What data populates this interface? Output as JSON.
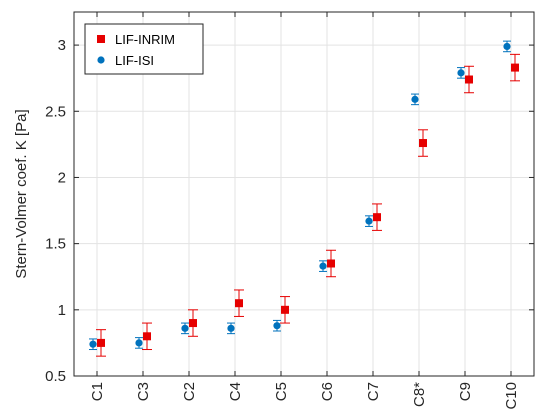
{
  "chart_data": {
    "type": "scatter",
    "title": "",
    "xlabel": "",
    "ylabel": "Stern-Volmer coef. K [Pa]",
    "categories": [
      "C1",
      "C3",
      "C2",
      "C4",
      "C5",
      "C6",
      "C7",
      "C8*",
      "C9",
      "C10"
    ],
    "ylim": [
      0.5,
      3.25
    ],
    "yticks": [
      "0.5",
      "1",
      "1.5",
      "2",
      "2.5",
      "3"
    ],
    "grid": true,
    "legend_position": "top-left",
    "series": [
      {
        "name": "LIF-INRIM",
        "marker": "square",
        "color": "#e60000",
        "values": [
          0.75,
          0.8,
          0.9,
          1.05,
          1.0,
          1.35,
          1.7,
          2.26,
          2.74,
          2.83
        ],
        "errors": [
          0.1,
          0.1,
          0.1,
          0.1,
          0.1,
          0.1,
          0.1,
          0.1,
          0.1,
          0.1
        ]
      },
      {
        "name": "LIF-ISI",
        "marker": "circle",
        "color": "#0072bd",
        "values": [
          0.74,
          0.75,
          0.86,
          0.86,
          0.88,
          1.33,
          1.67,
          2.59,
          2.79,
          2.99
        ],
        "errors": [
          0.04,
          0.04,
          0.04,
          0.04,
          0.04,
          0.04,
          0.04,
          0.04,
          0.04,
          0.04
        ]
      }
    ]
  }
}
